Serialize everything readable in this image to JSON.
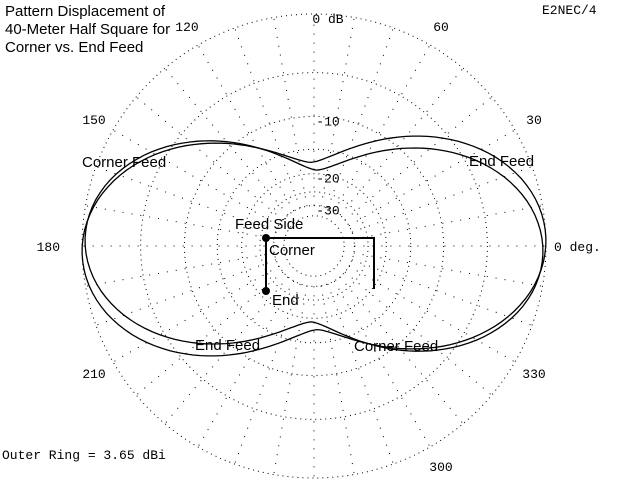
{
  "chart_data": {
    "type": "polar",
    "title": "Pattern Displacement of 40-Meter Half Square for Corner vs. End Feed",
    "brand": "E2NEC/4",
    "outer_ring_note": "Outer Ring = 3.65 dBi",
    "radial_ticks": [
      {
        "label": "0 dB",
        "db": 0
      },
      {
        "label": "-10",
        "db": -10
      },
      {
        "label": "-20",
        "db": -20
      },
      {
        "label": "-30",
        "db": -30
      }
    ],
    "angle_labels": [
      {
        "label": "0 deg.",
        "deg": 0
      },
      {
        "label": "30",
        "deg": 30
      },
      {
        "label": "60",
        "deg": 60
      },
      {
        "label": "120",
        "deg": 120
      },
      {
        "label": "150",
        "deg": 150
      },
      {
        "label": "180",
        "deg": 180
      },
      {
        "label": "210",
        "deg": 210
      },
      {
        "label": "300",
        "deg": 300
      },
      {
        "label": "330",
        "deg": 330
      }
    ],
    "series": [
      {
        "name": "Corner Feed",
        "max_db": 0,
        "null_db": -17.5,
        "tilt_deg": 2
      },
      {
        "name": "End Feed",
        "max_db": 0,
        "null_db": -18.5,
        "tilt_deg": -2
      }
    ],
    "annotations": [
      {
        "text": "Corner Feed",
        "ref": "upper-left"
      },
      {
        "text": "End Feed",
        "ref": "upper-right"
      },
      {
        "text": "End Feed",
        "ref": "lower-left"
      },
      {
        "text": "Corner Feed",
        "ref": "lower-right"
      }
    ],
    "inset": {
      "feed_side": "Feed Side",
      "corner": "Corner",
      "end": "End"
    }
  }
}
